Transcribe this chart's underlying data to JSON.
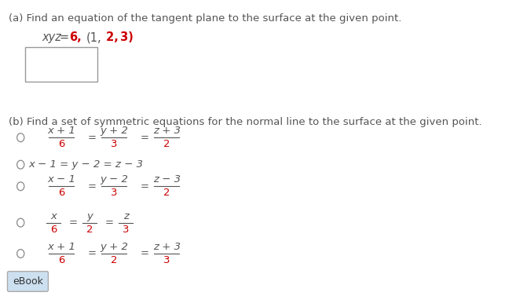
{
  "bg_color": "#ffffff",
  "text_color": "#555555",
  "red_color": "#cc0000",
  "part_a_label": "(a) Find an equation of the tangent plane to the surface at the given point.",
  "part_b_label": "(b) Find a set of symmetric equations for the normal line to the surface at the given point.",
  "ebook_label": "eBook",
  "fig_width": 6.57,
  "fig_height": 3.77,
  "dpi": 100
}
